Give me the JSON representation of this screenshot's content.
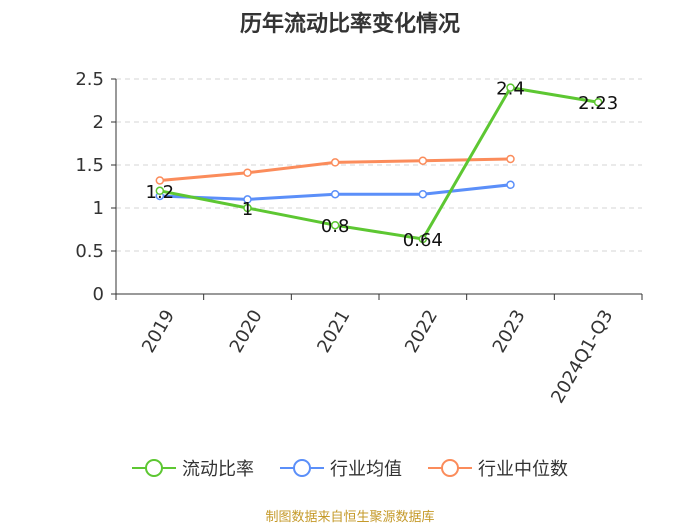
{
  "chart_data": {
    "type": "line",
    "title": "历年流动比率变化情况",
    "categories": [
      "2019",
      "2020",
      "2021",
      "2022",
      "2023",
      "2024Q1-Q3"
    ],
    "ylim": [
      0,
      2.5
    ],
    "yticks": [
      "0",
      "0.5",
      "1",
      "1.5",
      "2",
      "2.5"
    ],
    "grid": true,
    "legend_position": "bottom",
    "series": [
      {
        "name": "流动比率",
        "color": "#5dc732",
        "values": [
          1.2,
          1.0,
          0.8,
          0.64,
          2.4,
          2.23
        ],
        "labels": [
          "1.2",
          "1",
          "0.8",
          "0.64",
          "2.4",
          "2.23"
        ]
      },
      {
        "name": "行业均值",
        "color": "#5b8ff9",
        "values": [
          1.14,
          1.1,
          1.16,
          1.16,
          1.27,
          null
        ]
      },
      {
        "name": "行业中位数",
        "color": "#fb8c5b",
        "values": [
          1.32,
          1.41,
          1.53,
          1.55,
          1.57,
          null
        ]
      }
    ]
  },
  "source_note": "制图数据来自恒生聚源数据库"
}
